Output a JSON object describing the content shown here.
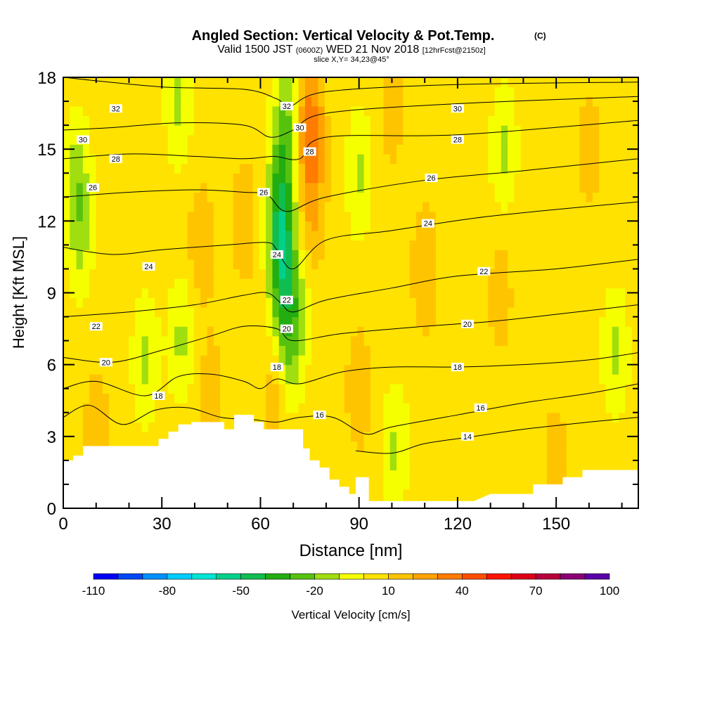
{
  "chart_data": {
    "type": "heatmap",
    "title": "Angled Section: Vertical Velocity & Pot.Temp.",
    "title_unit": "(C)",
    "subtitle": {
      "a": "Valid 1500 JST",
      "b": "(0600Z)",
      "c": "WED 21 Nov 2018",
      "d": "[12hrFcst@2150z]"
    },
    "slice_label": "slice X,Y= 34,23@45°",
    "xlabel": "Distance [nm]",
    "ylabel": "Height [Kft MSL]",
    "xlim": [
      0,
      175
    ],
    "ylim": [
      0,
      18
    ],
    "x_ticks": [
      {
        "value": 0,
        "label": "0"
      },
      {
        "value": 30,
        "label": "30"
      },
      {
        "value": 60,
        "label": "60"
      },
      {
        "value": 90,
        "label": "90"
      },
      {
        "value": 120,
        "label": "120"
      },
      {
        "value": 150,
        "label": "150"
      }
    ],
    "y_ticks": [
      {
        "value": 0,
        "label": "0"
      },
      {
        "value": 3,
        "label": "3"
      },
      {
        "value": 6,
        "label": "6"
      },
      {
        "value": 9,
        "label": "9"
      },
      {
        "value": 12,
        "label": "12"
      },
      {
        "value": 15,
        "label": "15"
      },
      {
        "value": 18,
        "label": "18"
      }
    ],
    "colorbar": {
      "label": "Vertical Velocity [cm/s]",
      "min": -110,
      "max": 100,
      "step": 10,
      "tick_labels": [
        {
          "value": -110,
          "label": "-110"
        },
        {
          "value": -80,
          "label": "-80"
        },
        {
          "value": -50,
          "label": "-50"
        },
        {
          "value": -20,
          "label": "-20"
        },
        {
          "value": 10,
          "label": "10"
        },
        {
          "value": 40,
          "label": "40"
        },
        {
          "value": 70,
          "label": "70"
        },
        {
          "value": 100,
          "label": "100"
        }
      ],
      "colors": [
        "#0000f5",
        "#0047f5",
        "#0090ff",
        "#00cdff",
        "#00e5d5",
        "#00d08a",
        "#10bd50",
        "#22ad10",
        "#56c20e",
        "#a0de10",
        "#f5ff00",
        "#ffe200",
        "#ffc400",
        "#ffa200",
        "#ff7c00",
        "#ff4e00",
        "#ff1400",
        "#dc0018",
        "#b8003c",
        "#8c0074",
        "#5a00a8"
      ]
    },
    "field": {
      "background_value": 5,
      "blobs": [
        {
          "x": 5,
          "y": 11.5,
          "value": -12
        },
        {
          "x": 4,
          "y": 14,
          "value": -12
        },
        {
          "x": 35,
          "y": 17,
          "value": -12
        },
        {
          "x": 36,
          "y": 7,
          "value": -12
        },
        {
          "x": 25,
          "y": 6.2,
          "value": -12
        },
        {
          "x": 67,
          "y": 9.5,
          "value": -30
        },
        {
          "x": 66,
          "y": 12,
          "value": -30
        },
        {
          "x": 67,
          "y": 14.5,
          "value": -15
        },
        {
          "x": 68,
          "y": 17,
          "value": -12
        },
        {
          "x": 68,
          "y": 6,
          "value": -12
        },
        {
          "x": 71,
          "y": 8,
          "value": -12
        },
        {
          "x": 90,
          "y": 14,
          "value": -12
        },
        {
          "x": 101,
          "y": 2.5,
          "value": -12
        },
        {
          "x": 134,
          "y": 15,
          "value": -12
        },
        {
          "x": 168,
          "y": 6.5,
          "value": -12
        },
        {
          "x": 75,
          "y": 16,
          "value": 38
        },
        {
          "x": 76,
          "y": 12.5,
          "value": 20
        },
        {
          "x": 42,
          "y": 11,
          "value": 18
        },
        {
          "x": 55,
          "y": 12,
          "value": 18
        },
        {
          "x": 110,
          "y": 10,
          "value": 20
        },
        {
          "x": 133,
          "y": 9,
          "value": 15
        },
        {
          "x": 90,
          "y": 5,
          "value": 18
        },
        {
          "x": 65,
          "y": 4.5,
          "value": 20
        },
        {
          "x": 10,
          "y": 3,
          "value": 18
        },
        {
          "x": 150,
          "y": 2,
          "value": 15
        },
        {
          "x": 45,
          "y": 5,
          "value": 15
        },
        {
          "x": 100,
          "y": 16.5,
          "value": 15
        },
        {
          "x": 160,
          "y": 15,
          "value": 15
        }
      ]
    },
    "terrain": [
      [
        0,
        2.0
      ],
      [
        3,
        2.0
      ],
      [
        3,
        2.2
      ],
      [
        6,
        2.2
      ],
      [
        6,
        2.6
      ],
      [
        10,
        2.6
      ],
      [
        20,
        2.6
      ],
      [
        29,
        2.6
      ],
      [
        29,
        2.9
      ],
      [
        32,
        2.9
      ],
      [
        32,
        3.2
      ],
      [
        35,
        3.2
      ],
      [
        35,
        3.5
      ],
      [
        39,
        3.5
      ],
      [
        39,
        3.6
      ],
      [
        49,
        3.6
      ],
      [
        49,
        3.3
      ],
      [
        52,
        3.3
      ],
      [
        52,
        3.9
      ],
      [
        58,
        3.9
      ],
      [
        58,
        3.6
      ],
      [
        61,
        3.6
      ],
      [
        61,
        3.3
      ],
      [
        70,
        3.3
      ],
      [
        73,
        3.3
      ],
      [
        73,
        2.5
      ],
      [
        75,
        2.5
      ],
      [
        75,
        2.0
      ],
      [
        78,
        2.0
      ],
      [
        78,
        1.7
      ],
      [
        81,
        1.7
      ],
      [
        81,
        1.2
      ],
      [
        84,
        1.2
      ],
      [
        84,
        0.9
      ],
      [
        87,
        0.9
      ],
      [
        87,
        0.6
      ],
      [
        89,
        0.6
      ],
      [
        89,
        1.3
      ],
      [
        93,
        1.3
      ],
      [
        93,
        0.3
      ],
      [
        100,
        0.3
      ],
      [
        125,
        0.3
      ],
      [
        130,
        0.6
      ],
      [
        131,
        0.6
      ],
      [
        131,
        0.6
      ],
      [
        143,
        0.6
      ],
      [
        143,
        1.0
      ],
      [
        152,
        1.0
      ],
      [
        152,
        1.3
      ],
      [
        158,
        1.3
      ],
      [
        158,
        1.6
      ],
      [
        175,
        1.6
      ]
    ],
    "contours": [
      {
        "label": "32",
        "points": [
          [
            0,
            18.0
          ],
          [
            30,
            17.6
          ],
          [
            55,
            17.5
          ],
          [
            65,
            17.1
          ],
          [
            69,
            16.8
          ],
          [
            80,
            17.4
          ],
          [
            120,
            17.7
          ],
          [
            175,
            17.8
          ]
        ],
        "label_at": [
          [
            16,
            16.7
          ],
          [
            68,
            16.8
          ]
        ]
      },
      {
        "label": "30",
        "points": [
          [
            0,
            15.8
          ],
          [
            15,
            15.9
          ],
          [
            35,
            16.1
          ],
          [
            55,
            16.0
          ],
          [
            63,
            15.5
          ],
          [
            70,
            15.8
          ],
          [
            80,
            16.5
          ],
          [
            120,
            16.9
          ],
          [
            175,
            17.2
          ]
        ],
        "label_at": [
          [
            6,
            15.4
          ],
          [
            72,
            15.9
          ],
          [
            120,
            16.7
          ]
        ]
      },
      {
        "label": "28",
        "points": [
          [
            0,
            14.6
          ],
          [
            20,
            14.8
          ],
          [
            40,
            14.7
          ],
          [
            55,
            14.6
          ],
          [
            64,
            14.7
          ],
          [
            72,
            14.6
          ],
          [
            80,
            15.5
          ],
          [
            120,
            15.6
          ],
          [
            175,
            16.2
          ]
        ],
        "label_at": [
          [
            16,
            14.6
          ],
          [
            75,
            14.9
          ],
          [
            120,
            15.4
          ]
        ]
      },
      {
        "label": "26",
        "points": [
          [
            0,
            13.0
          ],
          [
            20,
            13.2
          ],
          [
            40,
            13.3
          ],
          [
            55,
            13.2
          ],
          [
            62,
            13.1
          ],
          [
            68,
            12.4
          ],
          [
            80,
            13.0
          ],
          [
            110,
            13.7
          ],
          [
            140,
            14.1
          ],
          [
            175,
            14.6
          ]
        ],
        "label_at": [
          [
            9,
            13.4
          ],
          [
            61,
            13.2
          ],
          [
            112,
            13.8
          ]
        ]
      },
      {
        "label": "24",
        "points": [
          [
            0,
            10.9
          ],
          [
            15,
            10.6
          ],
          [
            30,
            10.8
          ],
          [
            50,
            11.0
          ],
          [
            62,
            11.1
          ],
          [
            65,
            10.8
          ],
          [
            70,
            10.0
          ],
          [
            80,
            11.2
          ],
          [
            100,
            11.6
          ],
          [
            130,
            12.2
          ],
          [
            175,
            12.8
          ]
        ],
        "label_at": [
          [
            26,
            10.1
          ],
          [
            65,
            10.6
          ],
          [
            111,
            11.9
          ]
        ]
      },
      {
        "label": "22",
        "points": [
          [
            0,
            8.0
          ],
          [
            20,
            8.2
          ],
          [
            40,
            8.5
          ],
          [
            55,
            8.9
          ],
          [
            62,
            9.0
          ],
          [
            66,
            8.6
          ],
          [
            70,
            8.2
          ],
          [
            80,
            8.7
          ],
          [
            100,
            9.2
          ],
          [
            120,
            9.7
          ],
          [
            150,
            10.0
          ],
          [
            175,
            10.4
          ]
        ],
        "label_at": [
          [
            10,
            7.6
          ],
          [
            68,
            8.7
          ],
          [
            128,
            9.9
          ]
        ]
      },
      {
        "label": "20",
        "points": [
          [
            0,
            6.3
          ],
          [
            15,
            6.1
          ],
          [
            30,
            6.6
          ],
          [
            45,
            7.2
          ],
          [
            55,
            7.6
          ],
          [
            65,
            7.5
          ],
          [
            70,
            7.0
          ],
          [
            85,
            7.3
          ],
          [
            110,
            7.6
          ],
          [
            130,
            7.8
          ],
          [
            150,
            8.1
          ],
          [
            175,
            8.5
          ]
        ],
        "label_at": [
          [
            13,
            6.1
          ],
          [
            68,
            7.5
          ],
          [
            123,
            7.7
          ]
        ]
      },
      {
        "label": "18",
        "points": [
          [
            0,
            5.0
          ],
          [
            10,
            5.3
          ],
          [
            25,
            4.7
          ],
          [
            35,
            5.5
          ],
          [
            45,
            5.6
          ],
          [
            55,
            5.3
          ],
          [
            60,
            5.0
          ],
          [
            65,
            5.4
          ],
          [
            72,
            5.2
          ],
          [
            85,
            5.7
          ],
          [
            100,
            5.9
          ],
          [
            120,
            5.9
          ],
          [
            140,
            6.0
          ],
          [
            160,
            6.2
          ],
          [
            175,
            6.5
          ]
        ],
        "label_at": [
          [
            29,
            4.7
          ],
          [
            65,
            5.9
          ],
          [
            120,
            5.9
          ]
        ]
      },
      {
        "label": "16",
        "points": [
          [
            0,
            3.8
          ],
          [
            8,
            4.3
          ],
          [
            18,
            3.5
          ],
          [
            28,
            4.1
          ],
          [
            38,
            4.2
          ],
          [
            48,
            3.8
          ],
          [
            58,
            3.7
          ],
          [
            65,
            3.6
          ],
          [
            72,
            3.8
          ],
          [
            82,
            3.8
          ],
          [
            92,
            3.1
          ],
          [
            100,
            3.4
          ],
          [
            120,
            3.9
          ],
          [
            140,
            4.4
          ],
          [
            160,
            4.8
          ],
          [
            175,
            5.2
          ]
        ],
        "label_at": [
          [
            78,
            3.9
          ],
          [
            127,
            4.2
          ]
        ]
      },
      {
        "label": "14",
        "points": [
          [
            89,
            2.4
          ],
          [
            100,
            2.3
          ],
          [
            110,
            2.7
          ],
          [
            125,
            3.0
          ],
          [
            140,
            3.3
          ],
          [
            160,
            3.6
          ],
          [
            175,
            3.8
          ]
        ],
        "label_at": [
          [
            123,
            3.0
          ]
        ]
      }
    ]
  }
}
